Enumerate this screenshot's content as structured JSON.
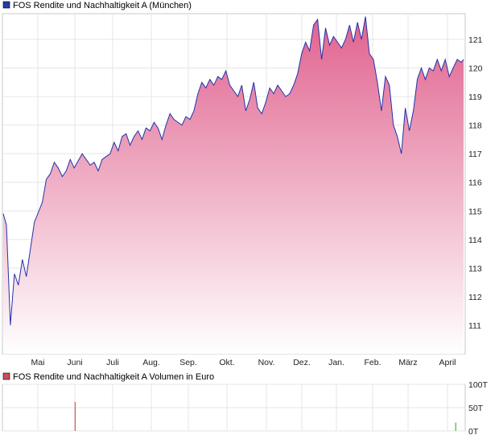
{
  "chart_data": [
    {
      "type": "area",
      "title": "FOS Rendite und Nachhaltigkeit A (München)",
      "legend_color": "#1f3fa8",
      "line_color": "#2233aa",
      "fill_top_color": "#e0628e",
      "fill_bottom_color": "#ffffff",
      "ylim": [
        110,
        121.9
      ],
      "yticks": [
        111,
        112,
        113,
        114,
        115,
        116,
        117,
        118,
        119,
        120,
        121
      ],
      "xticks": [
        "Mai",
        "Juni",
        "Juli",
        "Aug.",
        "Sep.",
        "Okt.",
        "Nov.",
        "Dez.",
        "Jan.",
        "Feb.",
        "März",
        "April"
      ],
      "grid": true,
      "x": [
        "1",
        "5",
        "10",
        "15",
        "20",
        "25",
        "30",
        "40",
        "50",
        "55",
        "60",
        "65",
        "70",
        "75",
        "80",
        "85",
        "90",
        "100",
        "105",
        "110",
        "115",
        "120",
        "125",
        "130",
        "135",
        "140",
        "145",
        "150",
        "155",
        "160",
        "165",
        "170",
        "175",
        "180",
        "185",
        "190",
        "195",
        "200",
        "205",
        "210",
        "215",
        "220",
        "225",
        "230",
        "235",
        "240",
        "245",
        "250",
        "255",
        "260",
        "265",
        "270",
        "275",
        "280",
        "285",
        "290",
        "295",
        "300",
        "305",
        "310",
        "315",
        "320",
        "325",
        "330",
        "335",
        "340",
        "345",
        "350",
        "355",
        "360",
        "365",
        "370",
        "375",
        "380",
        "385",
        "390",
        "395",
        "400",
        "405",
        "410",
        "415",
        "420",
        "425",
        "430",
        "435",
        "440",
        "445",
        "450",
        "455",
        "460",
        "465",
        "470",
        "475",
        "480",
        "485",
        "490",
        "495",
        "500",
        "505",
        "510",
        "515",
        "520",
        "525",
        "530",
        "535",
        "540",
        "545",
        "550",
        "555",
        "560",
        "565",
        "570",
        "575",
        "578"
      ],
      "values": [
        114.9,
        114.5,
        111.0,
        112.8,
        112.4,
        113.3,
        112.7,
        114.6,
        115.3,
        116.1,
        116.3,
        116.7,
        116.5,
        116.2,
        116.4,
        116.8,
        116.5,
        117.0,
        116.8,
        116.6,
        116.7,
        116.4,
        116.8,
        116.9,
        117.0,
        117.4,
        117.1,
        117.6,
        117.7,
        117.3,
        117.6,
        117.8,
        117.5,
        117.9,
        117.8,
        118.1,
        117.9,
        117.5,
        118.0,
        118.4,
        118.2,
        118.1,
        118.0,
        118.3,
        118.2,
        118.5,
        119.1,
        119.5,
        119.3,
        119.6,
        119.4,
        119.7,
        119.6,
        119.9,
        119.4,
        119.2,
        119.0,
        119.4,
        118.5,
        118.9,
        119.5,
        118.6,
        118.4,
        118.8,
        119.3,
        119.1,
        119.4,
        119.2,
        119.0,
        119.1,
        119.4,
        119.8,
        120.5,
        120.9,
        120.6,
        121.5,
        121.7,
        120.3,
        121.4,
        120.8,
        121.1,
        120.9,
        120.7,
        121.0,
        121.5,
        120.9,
        121.6,
        121.0,
        121.8,
        120.5,
        120.3,
        119.5,
        118.5,
        119.7,
        119.4,
        118.0,
        117.6,
        117.0,
        118.6,
        117.8,
        118.5,
        119.6,
        120.0,
        119.6,
        120.0,
        119.9,
        120.3,
        119.9,
        120.3,
        119.7,
        120.0,
        120.3,
        120.2,
        120.3
      ]
    },
    {
      "type": "bar",
      "title": "FOS Rendite und Nachhaltigkeit A Volumen in Euro",
      "legend_color": "#c8505a",
      "ylim": [
        0,
        100000
      ],
      "yticks": [
        "0T",
        "50T",
        "100T"
      ],
      "grid": true,
      "bars": [
        {
          "x": "91",
          "value": 62000,
          "color": "#d46a6a"
        },
        {
          "x": "568",
          "value": 18000,
          "color": "#5cc05c"
        }
      ]
    }
  ]
}
